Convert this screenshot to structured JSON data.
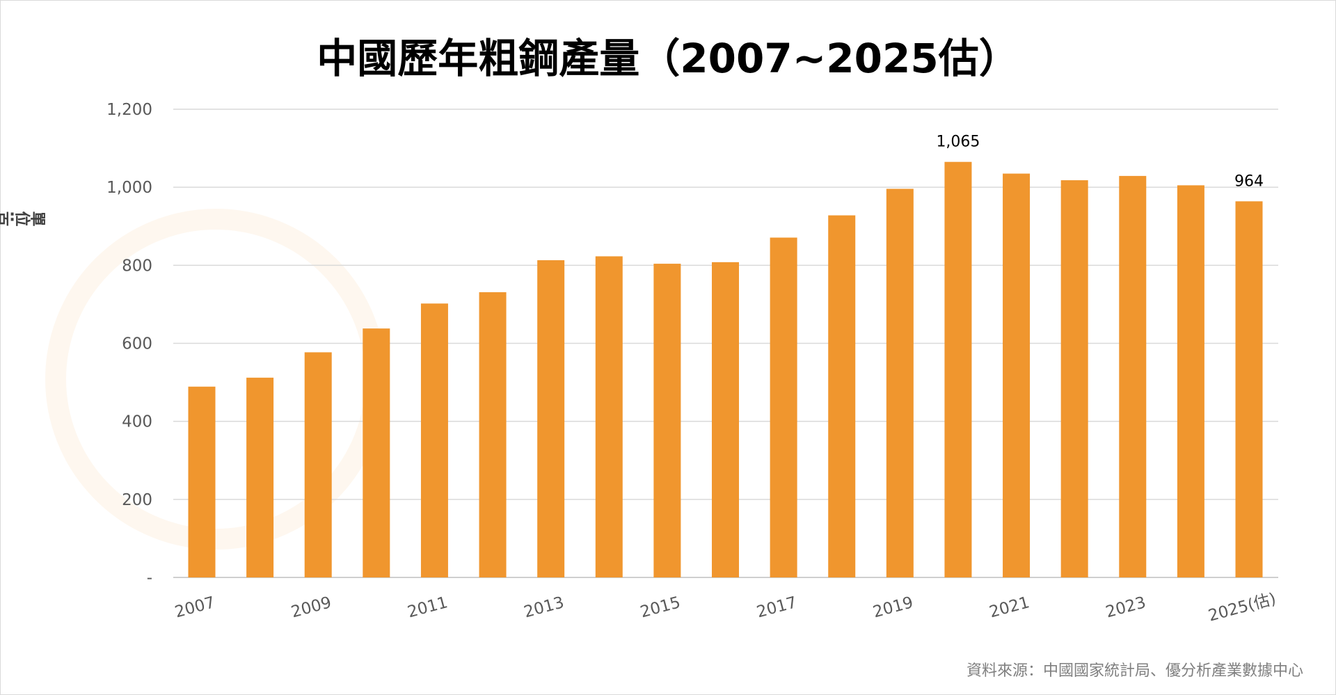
{
  "chart_data": {
    "type": "bar",
    "title": "中國歷年粗鋼產量（2007~2025估）",
    "ylabel": "單位:百萬噸",
    "xlabel": "",
    "categories": [
      "2007",
      "2008",
      "2009",
      "2010",
      "2011",
      "2012",
      "2013",
      "2014",
      "2015",
      "2016",
      "2017",
      "2018",
      "2019",
      "2020",
      "2021",
      "2022",
      "2023",
      "2024",
      "2025(估)"
    ],
    "x_tick_labels": [
      "2007",
      "2009",
      "2011",
      "2013",
      "2015",
      "2017",
      "2019",
      "2021",
      "2023",
      "2025(估)"
    ],
    "values": [
      489,
      512,
      577,
      638,
      702,
      731,
      813,
      823,
      804,
      808,
      871,
      928,
      996,
      1065,
      1035,
      1018,
      1029,
      1005,
      964
    ],
    "data_labels": [
      {
        "category": "2020",
        "text": "1,065"
      },
      {
        "category": "2025(估)",
        "text": "964"
      }
    ],
    "y_tick_labels": [
      "-",
      "200",
      "400",
      "600",
      "800",
      "1,000",
      "1,200"
    ],
    "ylim": [
      0,
      1200
    ],
    "grid": true,
    "legend": "none",
    "bar_color": "#F0962E",
    "source": "資料來源：中國國家統計局、優分析產業數據中心"
  }
}
